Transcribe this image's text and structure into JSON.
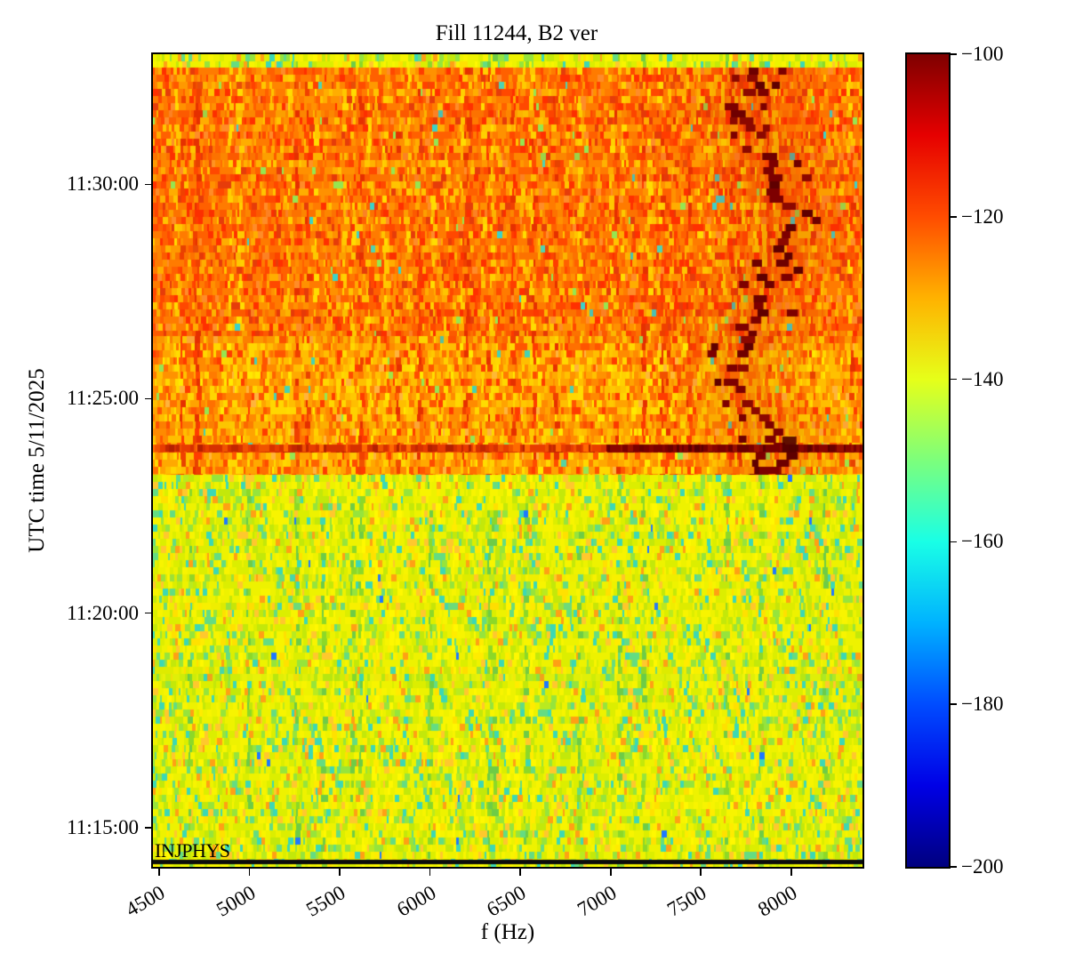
{
  "page": {
    "background": "#ffffff"
  },
  "chart_data": {
    "type": "heatmap",
    "title": "Fill 11244, B2 ver",
    "xlabel": "f (Hz)",
    "ylabel": "UTC time 5/11/2025",
    "annotation": "INJPHYS",
    "x_unit": "Hz",
    "x_range": [
      4465,
      8395
    ],
    "x_ticks": [
      4500,
      5000,
      5500,
      6000,
      6500,
      7000,
      7500,
      8000
    ],
    "y_ticks": [
      "11:30:00",
      "11:25:00",
      "11:20:00",
      "11:15:00"
    ],
    "time_span": {
      "top": "11:33:02",
      "bottom": "11:14:05"
    },
    "colorbar": {
      "vmin": -200,
      "vmax": -100,
      "tick_values": [
        -100,
        -120,
        -140,
        -160,
        -180,
        -200
      ],
      "tick_labels": [
        "−100",
        "−120",
        "−140",
        "−160",
        "−180",
        "−200"
      ],
      "colormap": "jet",
      "stops": [
        "#7f0000",
        "#e60000",
        "#ff4c00",
        "#ffb200",
        "#e6ff19",
        "#7cff7c",
        "#19ffe6",
        "#00b2ff",
        "#004cff",
        "#0000e6",
        "#00007f"
      ]
    },
    "bands": [
      {
        "palette": "green",
        "t_top": "11:33:02",
        "t_bot": "11:32:43",
        "desc": "thin yellow-green band at very top, ~ -140 dB"
      },
      {
        "palette": "orangeA",
        "t_top": "11:32:43",
        "t_bot": "11:26:28",
        "trace": true,
        "desc": "high broadband noise, ~ -115 to -125 dB (orange-red)"
      },
      {
        "palette": "orangeB",
        "t_top": "11:26:28",
        "t_bot": "11:23:56",
        "trace": true,
        "desc": "slightly lighter noise, ~ -120 to -130 dB (yellow-orange)"
      },
      {
        "palette": "stripe",
        "t_top": "11:23:56",
        "t_bot": "11:23:45",
        "trace": true,
        "desc": "broadband burst stripe ~ -100 to -110 dB, darkest above ~6900 Hz"
      },
      {
        "palette": "orangeB",
        "t_top": "11:23:45",
        "t_bot": "11:23:14",
        "trace": true,
        "cluster": true,
        "desc": "orange band below burst with dark cluster near 7800 Hz"
      },
      {
        "palette": "green",
        "t_top": "11:23:14",
        "t_bot": "11:14:15",
        "desc": "quiet noise floor, ~ -140 to -150 dB (yellow-green)"
      },
      {
        "palette": "black",
        "t_top": "11:14:15",
        "t_bot": "11:14:09",
        "desc": "black horizontal marker line at INJPHYS"
      },
      {
        "palette": "green",
        "t_top": "11:14:09",
        "t_bot": "11:14:05",
        "desc": "bottom edge row"
      }
    ],
    "trace": {
      "f_center": 7810,
      "f_min": 7650,
      "f_max": 7990,
      "t_top": "11:32:43",
      "t_bot": "11:23:14",
      "desc": "wandering dark-red spectral line near -100 dB around 7650-7990 Hz"
    },
    "burst": {
      "time": "~11:23:50",
      "dark_above_hz": 6900
    },
    "marker_line_color": "#0c0c0c",
    "blue_speck_color": "#1e78ff",
    "trace_blob_colors": [
      "#6e0000",
      "#7d0000",
      "#5f0000",
      "#8c0800"
    ],
    "palettes": {
      "green": [
        [
          "#eef200",
          26
        ],
        [
          "#dcee00",
          18
        ],
        [
          "#f8f400",
          14
        ],
        [
          "#c3e80a",
          10
        ],
        [
          "#96e43c",
          8
        ],
        [
          "#64dc82",
          5
        ],
        [
          "#3cd8b4",
          4
        ],
        [
          "#ffc82d",
          5
        ],
        [
          "#ffa014",
          4
        ],
        [
          "#ffe100",
          4
        ],
        [
          "#b9ea20",
          2
        ]
      ],
      "orangeA": [
        [
          "#ff7b00",
          24
        ],
        [
          "#ff6000",
          18
        ],
        [
          "#ff9100",
          15
        ],
        [
          "#ff4800",
          12
        ],
        [
          "#ffad00",
          9
        ],
        [
          "#ff3000",
          6
        ],
        [
          "#ffc400",
          6
        ],
        [
          "#e63c0a",
          4
        ],
        [
          "#ff8c28",
          3
        ],
        [
          "#96e650",
          0.6
        ],
        [
          "#3cd2c8",
          0.5
        ]
      ],
      "orangeB": [
        [
          "#ffa300",
          22
        ],
        [
          "#ff8a00",
          17
        ],
        [
          "#ffbe00",
          16
        ],
        [
          "#ff7000",
          13
        ],
        [
          "#ffd700",
          11
        ],
        [
          "#ff5500",
          9
        ],
        [
          "#ff3c00",
          4
        ],
        [
          "#ffe900",
          4
        ],
        [
          "#ffb43c",
          2
        ],
        [
          "#96e650",
          0.8
        ],
        [
          "#46d2b4",
          0.4
        ]
      ],
      "stripeL": [
        [
          "#e83c00",
          28
        ],
        [
          "#d73000",
          24
        ],
        [
          "#f05200",
          18
        ],
        [
          "#c32600",
          14
        ],
        [
          "#ff6a00",
          8
        ],
        [
          "#b42000",
          8
        ]
      ],
      "stripeR": [
        [
          "#7a0000",
          38
        ],
        [
          "#6b0000",
          24
        ],
        [
          "#8a0500",
          20
        ],
        [
          "#9a0f00",
          12
        ],
        [
          "#5c0000",
          6
        ]
      ]
    },
    "bias_palettes": {
      "orange": {
        "dark": [
          "#f04000",
          "#e63000",
          "#ff3c00"
        ],
        "light": [
          "#ffc800",
          "#ffdc00",
          "#ffd000"
        ]
      },
      "green": {
        "dark": [
          "#8cd828",
          "#6ecc46"
        ],
        "light": [
          "#fff800",
          "#ffec00"
        ]
      }
    }
  }
}
